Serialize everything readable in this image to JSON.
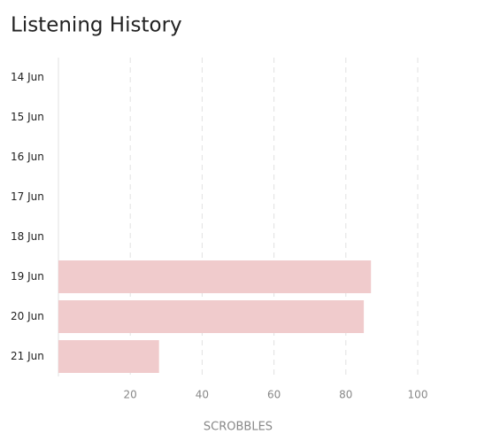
{
  "chart_data": {
    "type": "hbar",
    "title": "Listening History",
    "x_label": "SCROBBLES",
    "categories": [
      "14 Jun",
      "15 Jun",
      "16 Jun",
      "17 Jun",
      "18 Jun",
      "19 Jun",
      "20 Jun",
      "21 Jun"
    ],
    "values": [
      0,
      0,
      0,
      0,
      0,
      87,
      85,
      28
    ],
    "color": "#f0cbcc",
    "xlim": [
      0,
      100
    ],
    "xticks": [
      20,
      40,
      60,
      80,
      100
    ],
    "grid": true
  }
}
